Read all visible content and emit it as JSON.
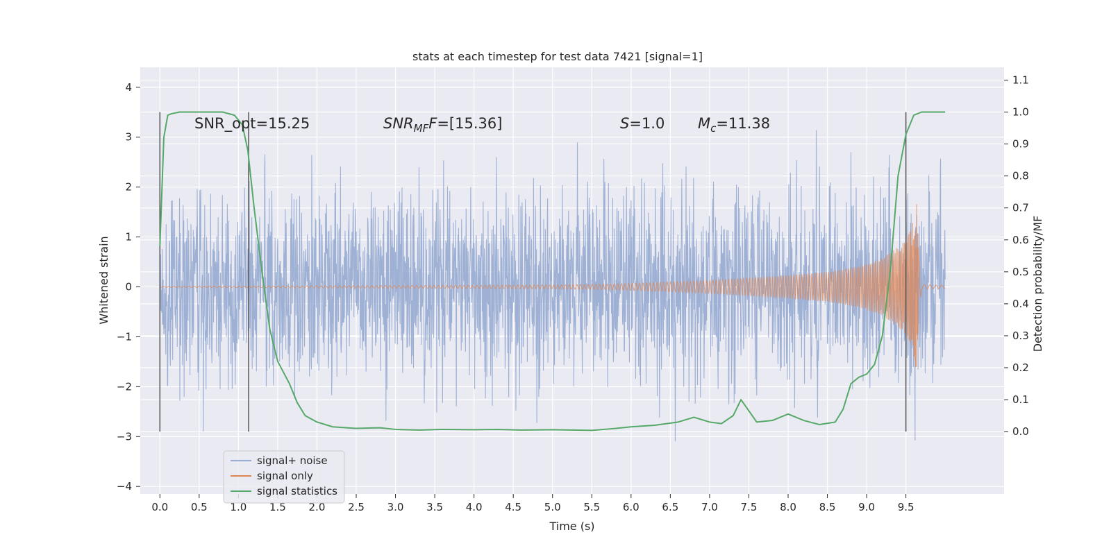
{
  "colors": {
    "axes_bg": "#eaeaf2",
    "grid": "#ffffff",
    "noise": "#9aaed3",
    "signal": "#dd8452",
    "stats": "#55a868",
    "vline": "#555555",
    "legend_bg": "#eaeaf2"
  },
  "chart_data": {
    "type": "line",
    "title": "stats at each timestep for test data 7421 [signal=1]",
    "xlabel": "Time (s)",
    "ylabel_left": "Whitened strain",
    "ylabel_right": "Detection probability/MF",
    "xlim": [
      -0.25,
      10.75
    ],
    "ylim_left": [
      -4.15,
      4.4
    ],
    "ylim_right": [
      -0.195,
      1.14
    ],
    "x_ticks": [
      "0.0",
      "0.5",
      "1.0",
      "1.5",
      "2.0",
      "2.5",
      "3.0",
      "3.5",
      "4.0",
      "4.5",
      "5.0",
      "5.5",
      "6.0",
      "6.5",
      "7.0",
      "7.5",
      "8.0",
      "8.5",
      "9.0",
      "9.5"
    ],
    "y_left_ticks": [
      "4",
      "3",
      "2",
      "1",
      "0",
      "−1",
      "−2",
      "−3",
      "−4"
    ],
    "y_right_ticks": [
      "1.1",
      "1.0",
      "0.9",
      "0.8",
      "0.7",
      "0.6",
      "0.5",
      "0.4",
      "0.3",
      "0.2",
      "0.1",
      "0.0"
    ],
    "grid": true,
    "legend_position": "lower-left",
    "annotations": {
      "snr_opt": "SNR_opt=15.25",
      "snr_mf_main": "SNR",
      "snr_mf_sub": "MF",
      "snr_mf_tail": "=[15.36]",
      "s_main": "S",
      "s_tail": "=1.0",
      "mc_main": "M",
      "mc_sub": "c",
      "mc_tail": "=11.38"
    },
    "vertical_lines": [
      0.0,
      1.13,
      9.5
    ],
    "noise_envelope": {
      "x": [
        0,
        0.5,
        1.0,
        2.0,
        3.0,
        4.0,
        5.0,
        6.0,
        7.0,
        8.0,
        9.0,
        9.5,
        10.0
      ],
      "amplitude": [
        2.0,
        2.05,
        2.1,
        2.15,
        2.2,
        2.2,
        2.15,
        2.1,
        2.1,
        2.15,
        2.2,
        2.3,
        2.3
      ]
    },
    "signal_envelope": {
      "x": [
        0,
        1,
        2,
        3,
        4,
        5,
        5.5,
        6,
        6.5,
        7,
        7.5,
        8,
        8.5,
        8.8,
        9.0,
        9.2,
        9.4,
        9.5,
        9.55,
        9.6,
        9.62,
        9.64,
        9.66,
        9.7,
        10.0
      ],
      "amplitude": [
        0.01,
        0.015,
        0.02,
        0.025,
        0.03,
        0.04,
        0.05,
        0.07,
        0.1,
        0.13,
        0.18,
        0.23,
        0.3,
        0.38,
        0.46,
        0.58,
        0.8,
        0.95,
        1.1,
        1.35,
        1.6,
        1.8,
        0.8,
        0.05,
        0.03
      ]
    },
    "series": [
      {
        "name": "signal+ noise",
        "color": "#9aaed3"
      },
      {
        "name": "signal only",
        "color": "#dd8452"
      },
      {
        "name": "signal statistics",
        "color": "#55a868",
        "x": [
          0.0,
          0.05,
          0.1,
          0.15,
          0.25,
          0.4,
          0.6,
          0.8,
          0.95,
          1.05,
          1.12,
          1.2,
          1.3,
          1.4,
          1.5,
          1.65,
          1.75,
          1.85,
          2.0,
          2.2,
          2.5,
          2.8,
          3.0,
          3.3,
          3.6,
          4.0,
          4.3,
          4.6,
          5.0,
          5.5,
          5.8,
          6.0,
          6.3,
          6.6,
          6.8,
          7.0,
          7.15,
          7.3,
          7.4,
          7.5,
          7.6,
          7.8,
          8.0,
          8.2,
          8.4,
          8.6,
          8.7,
          8.8,
          8.9,
          9.0,
          9.1,
          9.2,
          9.3,
          9.4,
          9.5,
          9.6,
          9.7,
          10.0
        ],
        "y": [
          0.58,
          0.92,
          0.99,
          0.995,
          1.0,
          1.0,
          1.0,
          1.0,
          0.99,
          0.96,
          0.88,
          0.7,
          0.5,
          0.32,
          0.22,
          0.15,
          0.09,
          0.05,
          0.03,
          0.015,
          0.01,
          0.012,
          0.007,
          0.005,
          0.007,
          0.006,
          0.007,
          0.005,
          0.006,
          0.004,
          0.01,
          0.015,
          0.02,
          0.03,
          0.045,
          0.03,
          0.025,
          0.05,
          0.1,
          0.065,
          0.03,
          0.035,
          0.055,
          0.035,
          0.022,
          0.03,
          0.07,
          0.15,
          0.17,
          0.18,
          0.21,
          0.3,
          0.5,
          0.8,
          0.93,
          0.99,
          1.0,
          1.0
        ]
      }
    ]
  }
}
